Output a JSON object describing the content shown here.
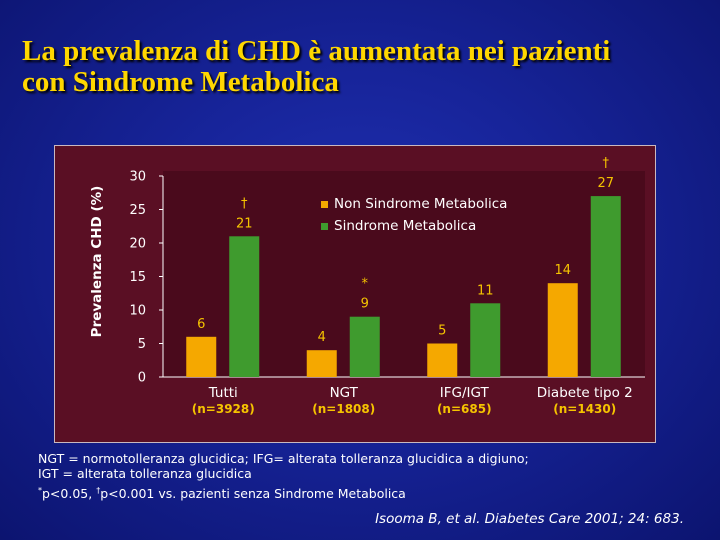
{
  "title": {
    "line1": "La prevalenza di CHD è aumentata nei pazienti",
    "line2": "con Sindrome Metabolica"
  },
  "chart_data": {
    "type": "bar",
    "ylabel": "Prevalenza CHD (%)",
    "xlabel": "",
    "ylim": [
      0,
      30
    ],
    "yticks": [
      0,
      5,
      10,
      15,
      20,
      25,
      30
    ],
    "grid": false,
    "legend_position": "top-center",
    "categories": [
      "Tutti",
      "NGT",
      "IFG/IGT",
      "Diabete tipo 2"
    ],
    "subcategories": [
      "(n=3928)",
      "(n=1808)",
      "(n=685)",
      "(n=1430)"
    ],
    "series": [
      {
        "name": "Non Sindrome Metabolica",
        "color": "#f5a800",
        "values": [
          6,
          4,
          5,
          14
        ],
        "labels": [
          "6",
          "4",
          "5",
          "14"
        ],
        "marks": [
          "",
          "",
          "",
          ""
        ]
      },
      {
        "name": "Sindrome Metabolica",
        "color": "#3f9b2e",
        "values": [
          21,
          9,
          11,
          27
        ],
        "labels": [
          "21",
          "9",
          "11",
          "27"
        ],
        "marks": [
          "†",
          "*",
          "",
          "†"
        ]
      }
    ]
  },
  "footnotes": {
    "line1": "NGT = normotolleranza glucidica; IFG= alterata tolleranza glucidica a digiuno;",
    "line2": "IGT = alterata tolleranza glucidica",
    "sig1_mark": "*",
    "sig1_text": "p<0.05, ",
    "sig2_mark": "†",
    "sig2_text": "p<0.001 vs. pazienti senza Sindrome Metabolica"
  },
  "citation": "Isooma B, et al. Diabetes Care 2001; 24: 683."
}
